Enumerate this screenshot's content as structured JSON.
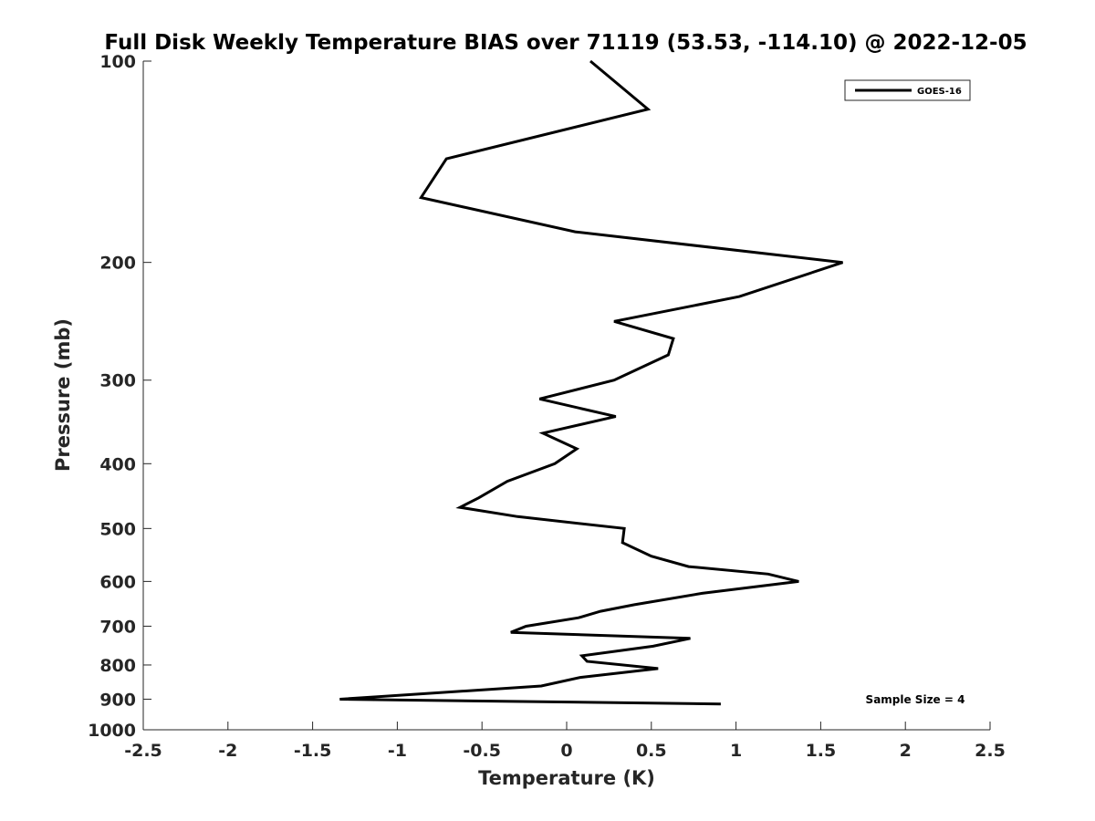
{
  "chart_data": {
    "type": "line",
    "title": "Full Disk Weekly Temperature BIAS over 71119 (53.53, -114.10) @ 2022-12-05",
    "xlabel": "Temperature (K)",
    "ylabel": "Pressure (mb)",
    "xlim": [
      -2.5,
      2.5
    ],
    "ylim": [
      100,
      1000
    ],
    "y_scale": "log",
    "y_reversed": true,
    "x_ticks": [
      "-2.5",
      "-2",
      "-1.5",
      "-1",
      "-0.5",
      "0",
      "0.5",
      "1",
      "1.5",
      "2",
      "2.5"
    ],
    "y_ticks": [
      "100",
      "200",
      "300",
      "400",
      "500",
      "600",
      "700",
      "800",
      "900",
      "1000"
    ],
    "grid": false,
    "legend_position": "top-right",
    "series": [
      {
        "name": "GOES-16",
        "color": "#000000",
        "points": [
          [
            0.14,
            100
          ],
          [
            0.48,
            118
          ],
          [
            -0.71,
            140
          ],
          [
            -0.86,
            160
          ],
          [
            0.05,
            180
          ],
          [
            1.63,
            200
          ],
          [
            1.02,
            225
          ],
          [
            0.28,
            245
          ],
          [
            0.63,
            260
          ],
          [
            0.6,
            275
          ],
          [
            0.28,
            300
          ],
          [
            -0.16,
            320
          ],
          [
            0.29,
            340
          ],
          [
            -0.14,
            360
          ],
          [
            0.06,
            380
          ],
          [
            -0.07,
            400
          ],
          [
            -0.35,
            425
          ],
          [
            -0.52,
            450
          ],
          [
            -0.63,
            465
          ],
          [
            -0.29,
            480
          ],
          [
            0.34,
            500
          ],
          [
            0.33,
            525
          ],
          [
            0.5,
            550
          ],
          [
            0.72,
            570
          ],
          [
            1.19,
            585
          ],
          [
            1.37,
            600
          ],
          [
            0.8,
            625
          ],
          [
            0.4,
            650
          ],
          [
            0.2,
            665
          ],
          [
            0.07,
            680
          ],
          [
            -0.24,
            700
          ],
          [
            -0.33,
            715
          ],
          [
            0.73,
            730
          ],
          [
            0.51,
            750
          ],
          [
            0.09,
            775
          ],
          [
            0.12,
            790
          ],
          [
            0.54,
            810
          ],
          [
            0.08,
            835
          ],
          [
            -0.15,
            860
          ],
          [
            -1.34,
            900
          ],
          [
            0.91,
            915
          ]
        ]
      }
    ],
    "annotation": "Sample Size = 4"
  }
}
